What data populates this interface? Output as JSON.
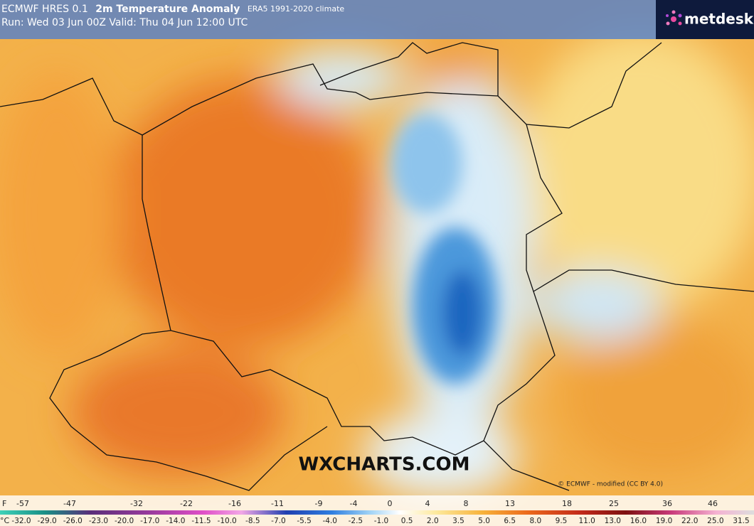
{
  "header": {
    "model": "ECMWF HRES 0.1",
    "title": "2m Temperature Anomaly",
    "climate": "ERA5 1991-2020 climate",
    "run": "Run: Wed 03 Jun 00Z Valid: Thu 04 Jun 12:00 UTC"
  },
  "logo": "metdesk",
  "watermark": "WXCHARTS.COM",
  "credit": "© ECMWF - modified (CC BY 4.0)",
  "legend": {
    "f_unit": "F",
    "f_labels": [
      "-57",
      "-47",
      "-32",
      "-22",
      "-16",
      "-11",
      "-9",
      "-4",
      "0",
      "4",
      "8",
      "13",
      "18",
      "25",
      "36",
      "46"
    ],
    "c_unit": "°C",
    "c_labels": [
      "-32.0",
      "-29.0",
      "-26.0",
      "-23.0",
      "-20.0",
      "-17.0",
      "-14.0",
      "-11.5",
      "-10.0",
      "-8.5",
      "-7.0",
      "-5.5",
      "-4.0",
      "-2.5",
      "-1.0",
      "0.5",
      "2.0",
      "3.5",
      "5.0",
      "6.5",
      "8.0",
      "9.5",
      "11.0",
      "13.0",
      "16.0",
      "19.0",
      "22.0",
      "25.0",
      "31.5"
    ]
  }
}
